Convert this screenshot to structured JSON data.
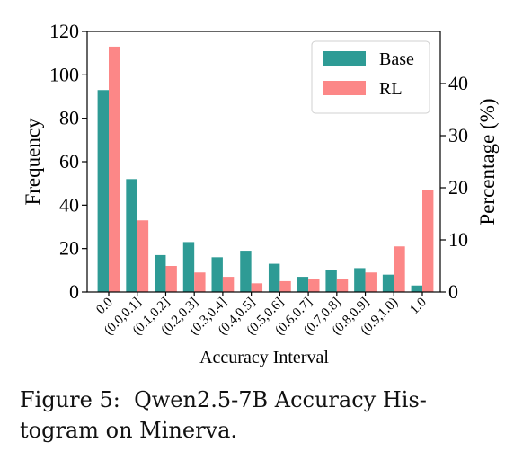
{
  "chart_data": {
    "type": "bar",
    "categories": [
      "0.0",
      "(0.0,0.1]",
      "(0.1,0.2]",
      "(0.2,0.3]",
      "(0.3,0.4]",
      "(0.4,0.5]",
      "(0.5,0.6]",
      "(0.6,0.7]",
      "(0.7,0.8]",
      "(0.8,0.9]",
      "(0.9,1.0)",
      "1.0"
    ],
    "series": [
      {
        "name": "Base",
        "color": "#2e9b95",
        "values": [
          93,
          52,
          17,
          23,
          16,
          19,
          13,
          7,
          10,
          11,
          8,
          3
        ]
      },
      {
        "name": "RL",
        "color": "#fc8787",
        "values": [
          113,
          33,
          12,
          9,
          7,
          4,
          5,
          6,
          6,
          9,
          21,
          47
        ]
      }
    ],
    "xlabel": "Accuracy Interval",
    "ylabel": "Frequency",
    "ylabel_right": "Percentage (%)",
    "ylim": [
      0,
      120
    ],
    "yticks": [
      0,
      20,
      40,
      60,
      80,
      100,
      120
    ],
    "ylim_right": [
      0,
      50
    ],
    "yticks_right": [
      0,
      10,
      20,
      30,
      40
    ],
    "legend_position": "top-right",
    "grid": false
  },
  "caption": {
    "line1": "Figure 5:  Qwen2.5-7B Accuracy His-",
    "line2": "togram on Minerva."
  }
}
